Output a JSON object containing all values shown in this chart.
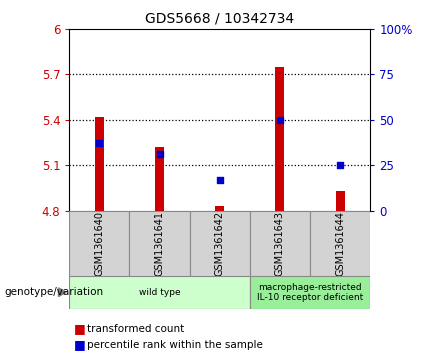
{
  "title": "GDS5668 / 10342734",
  "samples": [
    "GSM1361640",
    "GSM1361641",
    "GSM1361642",
    "GSM1361643",
    "GSM1361644"
  ],
  "bar_values": [
    5.42,
    5.22,
    4.83,
    5.75,
    4.93
  ],
  "bar_bottom": 4.8,
  "percentile_pct": [
    37,
    31,
    17,
    50,
    25
  ],
  "ylim_left": [
    4.8,
    6.0
  ],
  "ylim_right": [
    0,
    100
  ],
  "yticks_left": [
    4.8,
    5.1,
    5.4,
    5.7,
    6.0
  ],
  "yticks_right": [
    0,
    25,
    50,
    75,
    100
  ],
  "ytick_labels_left": [
    "4.8",
    "5.1",
    "5.4",
    "5.7",
    "6"
  ],
  "ytick_labels_right": [
    "0",
    "25",
    "50",
    "75",
    "100%"
  ],
  "bar_color": "#cc0000",
  "percentile_color": "#0000cc",
  "left_tick_color": "#cc0000",
  "right_tick_color": "#0000cc",
  "groups": [
    {
      "label": "wild type",
      "samples": [
        0,
        1,
        2
      ],
      "color": "#ccffcc"
    },
    {
      "label": "macrophage-restricted\nIL-10 receptor deficient",
      "samples": [
        3,
        4
      ],
      "color": "#99ee99"
    }
  ],
  "genotype_label": "genotype/variation",
  "legend_bar_label": "transformed count",
  "legend_pct_label": "percentile rank within the sample",
  "bar_width": 0.15,
  "sample_bg_color": "#d3d3d3",
  "sample_border_color": "#888888",
  "grid_dotted_color": "#000000"
}
